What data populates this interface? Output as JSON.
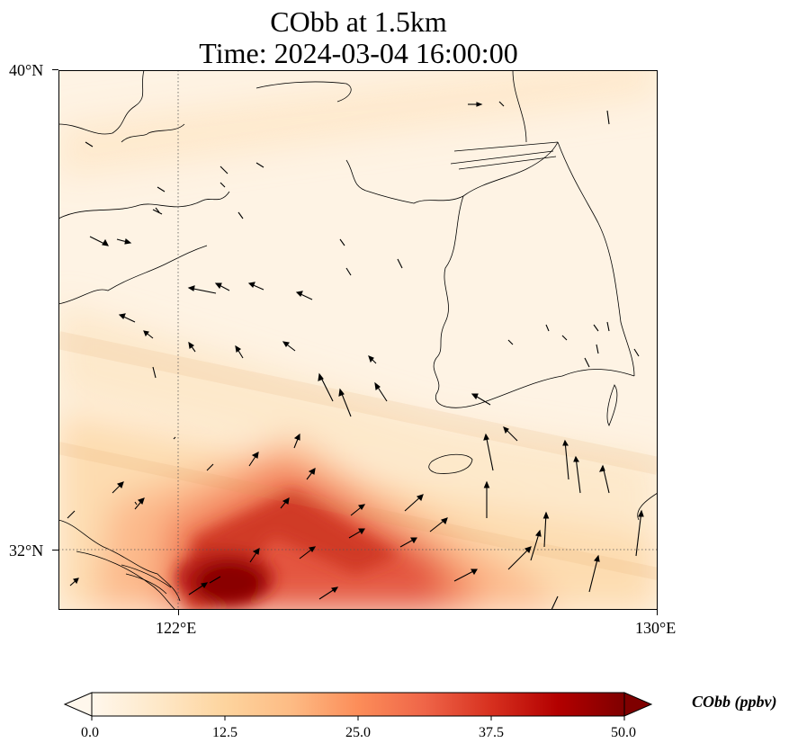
{
  "title_line1": "CObb at 1.5km",
  "title_line2": "Time: 2024-03-04 16:00:00",
  "axes": {
    "lat_labels": [
      "40°N",
      "32°N"
    ],
    "lon_labels": [
      "122°E",
      "130°E"
    ]
  },
  "colorbar": {
    "label": "CObb (ppbv)",
    "ticks": [
      "0.0",
      "12.5",
      "25.0",
      "37.5",
      "50.0"
    ],
    "colormap": "OrRd",
    "colors": [
      "#fff7ec",
      "#fee8c8",
      "#fdd49e",
      "#fdbb84",
      "#fc8d59",
      "#ef6548",
      "#d7301f",
      "#b30000",
      "#7f0000"
    ],
    "extend": "both"
  },
  "map": {
    "extent": {
      "lon_min": 120,
      "lon_max": 130,
      "lat_min": 31,
      "lat_max": 40
    },
    "gridlines": {
      "lon": 122,
      "lat": 32,
      "style": "dotted"
    },
    "field": "CObb concentration, max near 122.5°E 31.3°N"
  }
}
